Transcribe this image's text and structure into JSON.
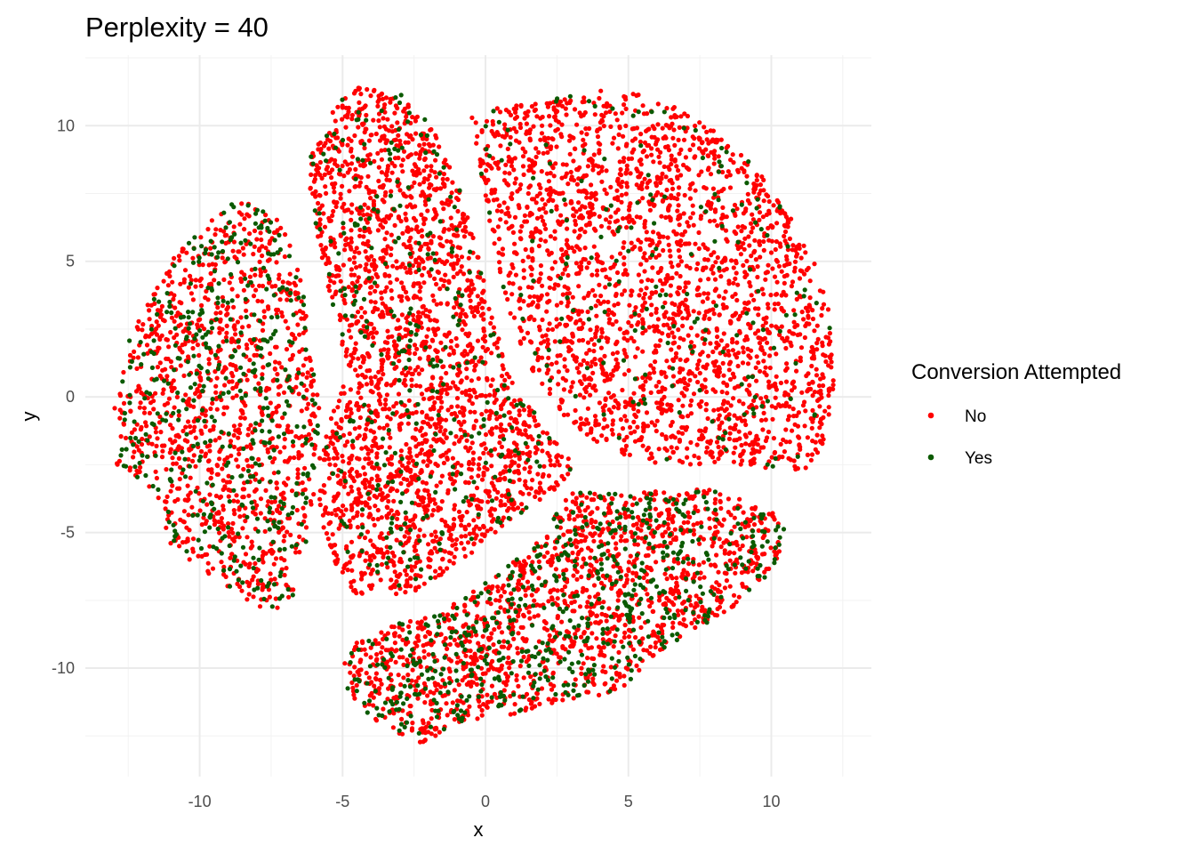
{
  "chart_data": {
    "type": "scatter",
    "title": "Perplexity = 40",
    "xlabel": "x",
    "ylabel": "y",
    "xlim": [
      -14.0,
      13.5
    ],
    "ylim": [
      -14.0,
      12.6
    ],
    "x_ticks": [
      -10,
      -5,
      0,
      5,
      10
    ],
    "y_ticks": [
      -10,
      -5,
      0,
      5,
      10
    ],
    "x_tick_labels": [
      "-10",
      "-5",
      "0",
      "5",
      "10"
    ],
    "y_tick_labels": [
      "-10",
      "-5",
      "0",
      "5",
      "10"
    ],
    "grid": true,
    "legend": {
      "title": "Conversion Attempted",
      "position": "right",
      "entries": [
        "No",
        "Yes"
      ]
    },
    "series": [
      {
        "name": "No",
        "color": "#ff0000"
      },
      {
        "name": "Yes",
        "color": "#0b5a00"
      }
    ],
    "clusters": [
      {
        "polygon": [
          [
            -8.8,
            7.2
          ],
          [
            -7.5,
            7.0
          ],
          [
            -6.5,
            5.0
          ],
          [
            -6.2,
            2.5
          ],
          [
            -5.8,
            -0.5
          ],
          [
            -5.9,
            -3.0
          ],
          [
            -6.3,
            -5.5
          ],
          [
            -6.7,
            -7.5
          ],
          [
            -7.5,
            -7.9
          ],
          [
            -8.5,
            -7.5
          ],
          [
            -9.7,
            -6.5
          ],
          [
            -11.0,
            -5.5
          ],
          [
            -11.5,
            -3.6
          ],
          [
            -12.9,
            -2.5
          ],
          [
            -13.1,
            -0.5
          ],
          [
            -12.5,
            2.0
          ],
          [
            -11.8,
            3.5
          ],
          [
            -11.0,
            5.0
          ],
          [
            -10.0,
            6.2
          ]
        ],
        "yes_fraction": 0.3
      },
      {
        "polygon": [
          [
            -5.3,
            10.8
          ],
          [
            -4.5,
            11.4
          ],
          [
            -3.0,
            11.2
          ],
          [
            -2.0,
            10.2
          ],
          [
            -1.0,
            8.0
          ],
          [
            -0.3,
            5.5
          ],
          [
            0.2,
            3.0
          ],
          [
            1.0,
            0.5
          ],
          [
            2.0,
            -1.0
          ],
          [
            3.0,
            -2.3
          ],
          [
            3.3,
            -2.8
          ],
          [
            2.5,
            -3.4
          ],
          [
            1.0,
            -4.5
          ],
          [
            -0.5,
            -5.8
          ],
          [
            -2.0,
            -7.0
          ],
          [
            -3.5,
            -7.5
          ],
          [
            -4.8,
            -7.2
          ],
          [
            -5.3,
            -6.0
          ],
          [
            -5.8,
            -4.5
          ],
          [
            -5.8,
            -2.0
          ],
          [
            -4.8,
            1.0
          ],
          [
            -5.5,
            4.0
          ],
          [
            -6.0,
            6.5
          ],
          [
            -6.3,
            8.5
          ]
        ],
        "yes_fraction": 0.12
      },
      {
        "polygon": [
          [
            -0.5,
            10.3
          ],
          [
            0.8,
            10.8
          ],
          [
            2.5,
            11.0
          ],
          [
            4.5,
            11.4
          ],
          [
            6.5,
            10.8
          ],
          [
            8.5,
            9.5
          ],
          [
            10.0,
            7.8
          ],
          [
            11.2,
            5.8
          ],
          [
            12.0,
            3.5
          ],
          [
            12.2,
            0.5
          ],
          [
            11.8,
            -2.0
          ],
          [
            11.2,
            -2.8
          ],
          [
            9.5,
            -2.6
          ],
          [
            7.5,
            -2.5
          ],
          [
            5.5,
            -2.4
          ],
          [
            3.8,
            -1.7
          ],
          [
            2.5,
            -0.5
          ],
          [
            1.5,
            1.2
          ],
          [
            0.7,
            3.5
          ],
          [
            0.2,
            6.0
          ],
          [
            -0.2,
            8.5
          ]
        ],
        "yes_fraction": 0.07
      },
      {
        "polygon": [
          [
            3.0,
            -3.5
          ],
          [
            5.0,
            -3.6
          ],
          [
            7.0,
            -3.3
          ],
          [
            8.5,
            -3.5
          ],
          [
            10.0,
            -4.2
          ],
          [
            10.6,
            -5.1
          ],
          [
            10.0,
            -6.5
          ],
          [
            9.0,
            -7.5
          ],
          [
            7.5,
            -8.5
          ],
          [
            6.0,
            -9.5
          ],
          [
            4.5,
            -11.0
          ],
          [
            3.5,
            -11.0
          ],
          [
            2.5,
            -11.3
          ],
          [
            1.0,
            -11.7
          ],
          [
            -1.0,
            -12.0
          ],
          [
            -2.2,
            -12.8
          ],
          [
            -3.5,
            -12.2
          ],
          [
            -4.9,
            -11.0
          ],
          [
            -5.0,
            -9.3
          ],
          [
            -3.5,
            -8.5
          ],
          [
            -1.5,
            -7.9
          ],
          [
            0.5,
            -6.5
          ],
          [
            2.0,
            -5.0
          ]
        ],
        "yes_fraction": 0.28
      }
    ]
  }
}
